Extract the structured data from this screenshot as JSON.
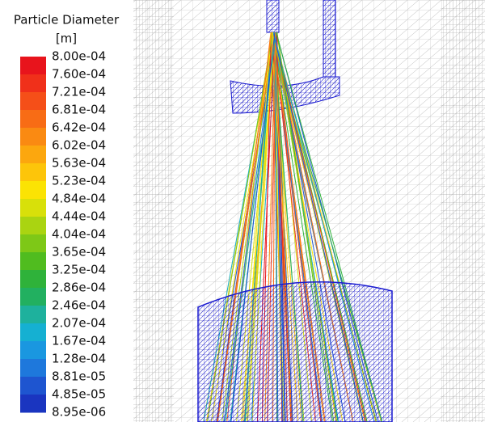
{
  "legend": {
    "title": "Particle Diameter",
    "unit": "[m]",
    "labels": [
      "8.00e-04",
      "7.60e-04",
      "7.21e-04",
      "6.81e-04",
      "6.42e-04",
      "6.02e-04",
      "5.63e-04",
      "5.23e-04",
      "4.84e-04",
      "4.44e-04",
      "4.04e-04",
      "3.65e-04",
      "3.25e-04",
      "2.86e-04",
      "2.46e-04",
      "2.07e-04",
      "1.67e-04",
      "1.28e-04",
      "8.81e-05",
      "4.85e-05",
      "8.95e-06"
    ],
    "colors": [
      "#e8141c",
      "#f0301a",
      "#f54f18",
      "#f86c15",
      "#fa8a12",
      "#fca70e",
      "#fdc50a",
      "#fbe304",
      "#d8e00a",
      "#aad411",
      "#7ec817",
      "#50bc1f",
      "#2fb23a",
      "#22b060",
      "#1eb19d",
      "#15b0d2",
      "#1a97e0",
      "#1e78dc",
      "#1e55d0",
      "#1a35c0"
    ]
  }
}
